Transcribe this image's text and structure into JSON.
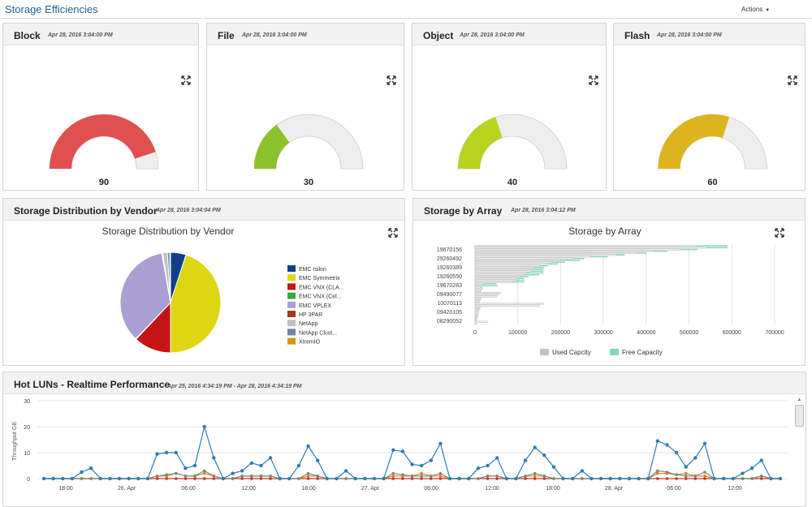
{
  "page": {
    "title": "Storage Efficiencies",
    "actions_label": "Actions"
  },
  "icons": {
    "expand": "expand-arrows-icon",
    "caret": "caret-down-icon"
  },
  "gauges": [
    {
      "panel_title": "Block",
      "timestamp": "Apr 28, 2016 3:04:00 PM",
      "label": "Block",
      "value": 90,
      "min": "0",
      "max": "100",
      "value_label": "90",
      "color": "#e05050"
    },
    {
      "panel_title": "File",
      "timestamp": "Apr 28, 2016 3:04:00 PM",
      "label": "File",
      "value": 30,
      "min": "0",
      "max": "100",
      "value_label": "30",
      "color": "#8dc22c"
    },
    {
      "panel_title": "Object",
      "timestamp": "Apr 28, 2016 3:04:00 PM",
      "label": "Object",
      "value": 40,
      "min": "0",
      "max": "100",
      "value_label": "40",
      "color": "#b8d41f"
    },
    {
      "panel_title": "Flash",
      "timestamp": "Apr 28, 2016 3:04:00 PM",
      "label": "Flash",
      "value": 60,
      "min": "0",
      "max": "100",
      "value_label": "60",
      "color": "#dcb51e"
    }
  ],
  "vendor": {
    "panel_title": "Storage Distribution by Vendor",
    "timestamp": "Apr 28, 2016 3:04:04 PM",
    "chart_title": "Storage Distribution by Vendor"
  },
  "array": {
    "panel_title": "Storage by Array",
    "timestamp": "Apr 28, 2016 3:04:12 PM",
    "chart_title": "Storage by Array"
  },
  "luns": {
    "panel_title": "Hot LUNs - Realtime Performance",
    "timestamp": "Apr 25, 2016 4:34:19 PM - Apr 28, 2016 4:34:19 PM"
  },
  "chart_data": [
    {
      "type": "pie",
      "title": "Storage Distribution by Vendor",
      "legend": "right",
      "slices": [
        {
          "label": "EMC Isilon",
          "value": 5,
          "color": "#123f8a"
        },
        {
          "label": "EMC Symmetrix",
          "value": 45,
          "color": "#dcd613"
        },
        {
          "label": "EMC VNX (CLA...",
          "value": 12,
          "color": "#c41414"
        },
        {
          "label": "EMC VNX (Cel...",
          "value": 0.2,
          "color": "#3aa843"
        },
        {
          "label": "EMC VPLEX",
          "value": 35,
          "color": "#ab9ed3"
        },
        {
          "label": "HP 3PAR",
          "value": 0.3,
          "color": "#a03a1e"
        },
        {
          "label": "NetApp",
          "value": 1.5,
          "color": "#c0c0c0"
        },
        {
          "label": "NetApp Clust...",
          "value": 0.8,
          "color": "#6f86a6"
        },
        {
          "label": "XtremIO",
          "value": 0.2,
          "color": "#d49416"
        }
      ]
    },
    {
      "type": "bar",
      "orientation": "horizontal",
      "title": "Storage by Array",
      "category_labels": [
        "19670156",
        "29260492",
        "19260389",
        "19260550",
        "19670283",
        "09490077",
        "10070113",
        "09420105",
        "08290052"
      ],
      "tick_labels": [
        "0",
        "100000",
        "200000",
        "300000",
        "400000",
        "500000",
        "600000",
        "700000"
      ],
      "xlim": [
        0,
        700000
      ],
      "colors": {
        "used": "#c2c2c2",
        "free": "#86d5b8"
      },
      "legend": [
        "Used Capcity",
        "Free Capacity"
      ],
      "series": [
        {
          "name": "Used Capcity",
          "values": [
            520000,
            540000,
            480000,
            420000,
            380000,
            330000,
            270000,
            230000,
            200000,
            180000,
            170000,
            150000,
            140000,
            135000,
            130000,
            120000,
            115000,
            105000,
            100000,
            95000,
            90000,
            20000,
            18000,
            14000,
            16000,
            12000,
            60000,
            55000,
            50000,
            14000,
            12000,
            10000,
            160000,
            150000,
            12000,
            10000,
            9000,
            8000,
            7000,
            6000,
            5000,
            4000,
            30000,
            3000
          ]
        },
        {
          "name": "Free Capacity",
          "values": [
            70000,
            50000,
            40000,
            30000,
            20000,
            20000,
            40000,
            25000,
            45000,
            30000,
            25000,
            20000,
            22000,
            25000,
            30000,
            40000,
            35000,
            20000,
            15000,
            20000,
            25000,
            30000,
            35000,
            3000,
            2000,
            2000,
            0,
            0,
            0,
            0,
            0,
            0,
            0,
            0,
            0,
            0,
            0,
            0,
            0,
            0,
            0,
            0,
            0,
            0
          ]
        }
      ]
    },
    {
      "type": "line",
      "title": "",
      "ylabel": "Throughput GB",
      "ylim": [
        0,
        30
      ],
      "y_ticks": [
        "30",
        "20",
        "10",
        "0"
      ],
      "x_ticks": [
        "18:00",
        "26. Apr",
        "06:00",
        "12:00",
        "18:00",
        "27. Apr",
        "06:00",
        "12:00",
        "18:00",
        "28. Apr",
        "06:00",
        "12:00"
      ],
      "series": [
        {
          "name": "",
          "color": "#2f7bb0",
          "values": [
            0,
            0,
            0,
            0,
            2.5,
            4,
            0,
            0,
            0,
            0,
            0,
            0,
            9.5,
            10,
            10,
            4,
            5,
            20,
            8,
            0,
            2,
            3,
            6,
            5,
            8,
            0,
            0,
            5,
            12.5,
            7,
            0,
            0,
            3,
            0,
            0,
            0,
            0,
            11,
            10.5,
            5.5,
            5,
            7,
            13.5,
            0,
            0,
            0,
            4,
            5,
            8,
            0,
            0,
            7,
            12,
            9,
            4.5,
            0,
            0,
            3,
            0,
            0,
            0,
            0,
            0,
            0,
            0,
            14.5,
            13,
            10,
            4.5,
            8,
            13.5,
            0,
            0,
            0,
            2,
            4,
            7,
            0,
            0
          ]
        },
        {
          "name": "",
          "color": "#7a8a7a",
          "values": [
            0,
            0,
            0,
            0,
            0,
            0,
            0,
            0,
            0,
            0,
            0,
            0,
            1,
            1.5,
            2,
            1,
            1,
            3,
            1,
            0,
            0,
            1,
            1,
            1,
            1,
            0,
            0,
            0,
            2,
            1,
            0,
            0,
            0,
            0,
            0,
            0,
            0,
            2,
            1.5,
            1,
            1,
            1,
            2,
            0,
            0,
            0,
            0,
            1,
            1,
            0,
            0,
            1,
            2,
            1,
            0,
            0,
            0,
            0,
            0,
            0,
            0,
            0,
            0,
            0,
            0,
            3,
            2.5,
            1.5,
            1,
            1,
            2.5,
            0,
            0,
            0,
            0,
            0,
            1,
            0,
            0
          ]
        },
        {
          "name": "",
          "color": "#e08020",
          "values": [
            0,
            0,
            0,
            0,
            0,
            0,
            0,
            0,
            0,
            0,
            0,
            0,
            1,
            1,
            2,
            1,
            1,
            2,
            1,
            0,
            0,
            1,
            1,
            1,
            1,
            0,
            0,
            0,
            1,
            1,
            0,
            0,
            0,
            0,
            0,
            0,
            0,
            1,
            1,
            1,
            2,
            1,
            1,
            0,
            0,
            0,
            0,
            1,
            1,
            0,
            0,
            1,
            1,
            1,
            0,
            0,
            0,
            0,
            0,
            0,
            0,
            0,
            0,
            0,
            0,
            2,
            2,
            1.5,
            2,
            1,
            1,
            0,
            0,
            0,
            0,
            0,
            1,
            0,
            0
          ]
        },
        {
          "name": "",
          "color": "#c0392b",
          "values": [
            0,
            0,
            0,
            0,
            0,
            0,
            0,
            0,
            0,
            0,
            0,
            0,
            0,
            0,
            0,
            0,
            0,
            0,
            0,
            0,
            0,
            0,
            0,
            0,
            0,
            0,
            0,
            0,
            0,
            0,
            0,
            0,
            0,
            0,
            0,
            0,
            0,
            0,
            0,
            0,
            0,
            0,
            0,
            0,
            0,
            0,
            0,
            0,
            0,
            0,
            0,
            0,
            0,
            0,
            0,
            0,
            0,
            0,
            0,
            0,
            0,
            0,
            0,
            0,
            0,
            0,
            0,
            0,
            0,
            0,
            0,
            0,
            0,
            0,
            0,
            0,
            0,
            0,
            0
          ]
        }
      ]
    }
  ]
}
